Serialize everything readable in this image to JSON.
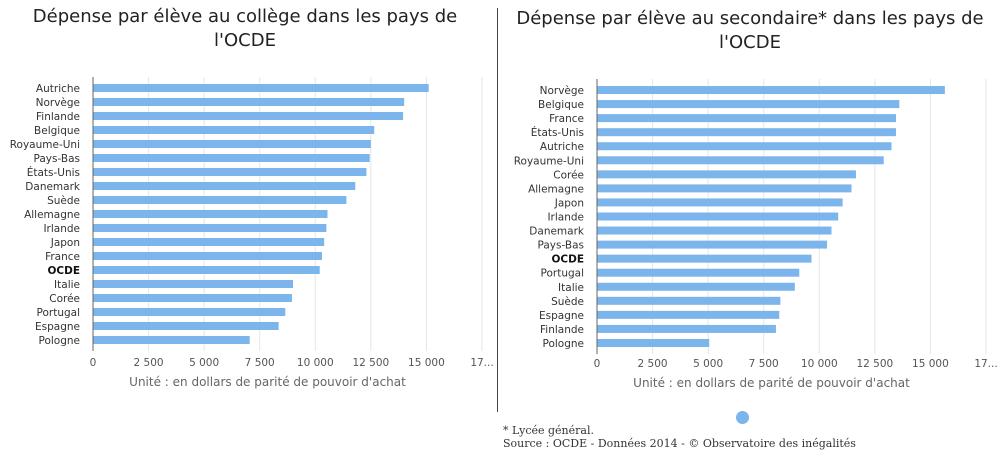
{
  "titles": {
    "left": "Dépense par élève au collège dans les pays de l'OCDE",
    "right": "Dépense par élève au secondaire* dans les pays de l'OCDE"
  },
  "footnotes": {
    "lycee": "* Lycée général.",
    "source": "Source : OCDE - Données 2014 - © Observatoire des inégalités"
  },
  "chart_data": [
    {
      "type": "bar",
      "orientation": "horizontal",
      "title": "Dépense par élève au collège dans les pays de l'OCDE",
      "xlabel": "Unité : en dollars de parité de pouvoir d'achat",
      "xlim": [
        0,
        17500
      ],
      "xticks": [
        "0",
        "2 500",
        "5 000",
        "7 500",
        "10 000",
        "12 500",
        "15 000",
        "17..."
      ],
      "bold_category": "OCDE",
      "color": "#7cb5ec",
      "categories": [
        "Autriche",
        "Norvège",
        "Finlande",
        "Belgique",
        "Royaume-Uni",
        "Pays-Bas",
        "États-Unis",
        "Danemark",
        "Suède",
        "Allemagne",
        "Irlande",
        "Japon",
        "France",
        "OCDE",
        "Italie",
        "Corée",
        "Portugal",
        "Espagne",
        "Pologne"
      ],
      "values": [
        15100,
        14000,
        13950,
        12650,
        12500,
        12450,
        12300,
        11800,
        11400,
        10550,
        10500,
        10400,
        10300,
        10200,
        9000,
        8950,
        8650,
        8350,
        7050
      ]
    },
    {
      "type": "bar",
      "orientation": "horizontal",
      "title": "Dépense par élève au secondaire* dans les pays de l'OCDE",
      "xlabel": "Unité : en dollars de parité de pouvoir d'achat",
      "xlim": [
        0,
        17500
      ],
      "xticks": [
        "0",
        "2 500",
        "5 000",
        "7 500",
        "10 000",
        "12 500",
        "15 000",
        "17..."
      ],
      "bold_category": "OCDE",
      "color": "#7cb5ec",
      "categories": [
        "Norvège",
        "Belgique",
        "France",
        "États-Unis",
        "Autriche",
        "Royaume-Uni",
        "Corée",
        "Allemagne",
        "Japon",
        "Irlande",
        "Danemark",
        "Pays-Bas",
        "OCDE",
        "Portugal",
        "Italie",
        "Suède",
        "Espagne",
        "Finlande",
        "Pologne"
      ],
      "values": [
        15650,
        13600,
        13450,
        13450,
        13250,
        12900,
        11650,
        11450,
        11050,
        10850,
        10550,
        10350,
        9650,
        9100,
        8900,
        8250,
        8200,
        8050,
        5050
      ]
    }
  ]
}
